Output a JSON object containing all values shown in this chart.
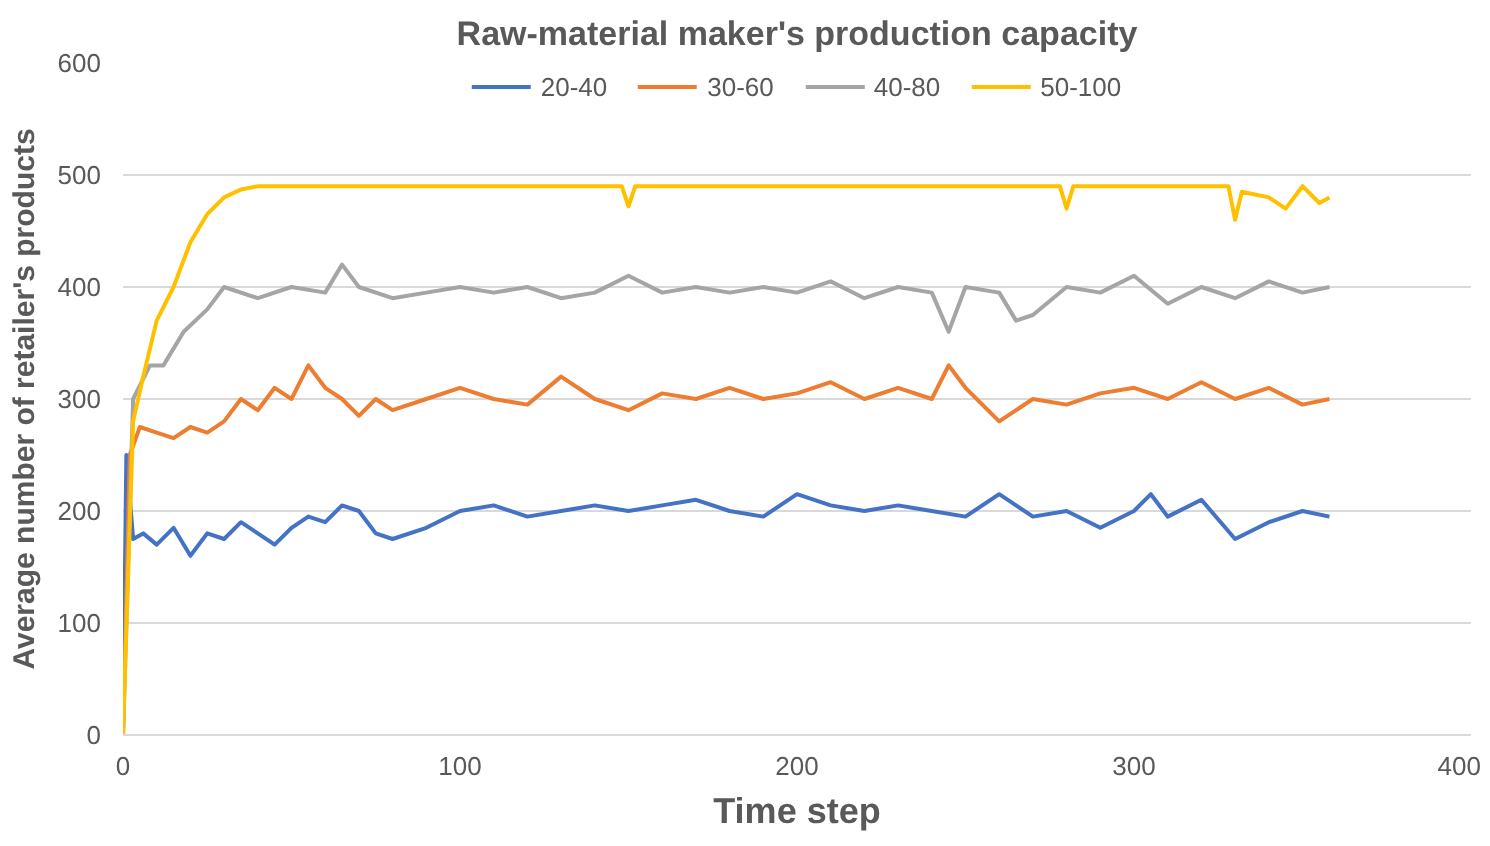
{
  "chart_data": {
    "type": "line",
    "title": "Raw-material maker's production capacity",
    "xlabel": "Time step",
    "ylabel": "Average number of retailer's products",
    "xlim": [
      0,
      400
    ],
    "xticks": [
      0,
      100,
      200,
      300,
      400
    ],
    "ylim": [
      0,
      600
    ],
    "yticks": [
      0,
      100,
      200,
      300,
      400,
      500,
      600
    ],
    "grid": "y",
    "legend": "top",
    "line_style": "solid",
    "marker": "none",
    "series": [
      {
        "name": "20-40",
        "color": "#4472c4",
        "x": [
          0,
          1,
          3,
          6,
          10,
          15,
          20,
          25,
          30,
          35,
          40,
          45,
          50,
          55,
          60,
          65,
          70,
          75,
          80,
          90,
          100,
          110,
          120,
          130,
          140,
          150,
          160,
          170,
          180,
          190,
          200,
          210,
          220,
          230,
          240,
          250,
          260,
          265,
          270,
          280,
          290,
          300,
          305,
          310,
          320,
          330,
          340,
          350,
          358
        ],
        "values": [
          0,
          250,
          175,
          180,
          170,
          185,
          160,
          180,
          175,
          190,
          180,
          170,
          185,
          195,
          190,
          205,
          200,
          180,
          175,
          185,
          200,
          205,
          195,
          200,
          205,
          200,
          205,
          210,
          200,
          195,
          215,
          205,
          200,
          205,
          200,
          195,
          215,
          205,
          195,
          200,
          185,
          200,
          215,
          195,
          210,
          175,
          190,
          200,
          195
        ]
      },
      {
        "name": "30-60",
        "color": "#ed7d31",
        "x": [
          0,
          2,
          5,
          10,
          15,
          20,
          25,
          30,
          35,
          40,
          45,
          50,
          55,
          60,
          65,
          70,
          75,
          80,
          90,
          100,
          110,
          120,
          130,
          140,
          150,
          160,
          170,
          180,
          190,
          200,
          210,
          220,
          230,
          240,
          245,
          250,
          260,
          270,
          280,
          290,
          300,
          310,
          320,
          330,
          340,
          350,
          358
        ],
        "values": [
          0,
          250,
          275,
          270,
          265,
          275,
          270,
          280,
          300,
          290,
          310,
          300,
          330,
          310,
          300,
          285,
          300,
          290,
          300,
          310,
          300,
          295,
          320,
          300,
          290,
          305,
          300,
          310,
          300,
          305,
          315,
          300,
          310,
          300,
          330,
          310,
          280,
          300,
          295,
          305,
          310,
          300,
          315,
          300,
          310,
          295,
          300
        ]
      },
      {
        "name": "40-80",
        "color": "#a5a5a5",
        "x": [
          0,
          3,
          8,
          12,
          18,
          25,
          30,
          40,
          50,
          60,
          65,
          70,
          80,
          90,
          100,
          110,
          120,
          130,
          140,
          150,
          160,
          170,
          180,
          190,
          200,
          210,
          220,
          230,
          240,
          245,
          250,
          260,
          265,
          270,
          280,
          290,
          300,
          310,
          320,
          330,
          340,
          350,
          358
        ],
        "values": [
          0,
          300,
          330,
          330,
          360,
          380,
          400,
          390,
          400,
          395,
          420,
          400,
          390,
          395,
          400,
          395,
          400,
          390,
          395,
          410,
          395,
          400,
          395,
          400,
          395,
          405,
          390,
          400,
          395,
          360,
          400,
          395,
          370,
          375,
          400,
          395,
          410,
          385,
          400,
          390,
          405,
          395,
          400
        ]
      },
      {
        "name": "50-100",
        "color": "#ffc000",
        "x": [
          0,
          3,
          6,
          10,
          15,
          20,
          25,
          30,
          35,
          40,
          60,
          80,
          100,
          120,
          140,
          148,
          150,
          152,
          160,
          180,
          200,
          220,
          240,
          260,
          278,
          280,
          282,
          300,
          320,
          328,
          330,
          332,
          340,
          345,
          350,
          355,
          358
        ],
        "values": [
          0,
          280,
          320,
          370,
          400,
          440,
          465,
          480,
          487,
          490,
          490,
          490,
          490,
          490,
          490,
          490,
          472,
          490,
          490,
          490,
          490,
          490,
          490,
          490,
          490,
          470,
          490,
          490,
          490,
          490,
          460,
          485,
          480,
          470,
          490,
          475,
          480
        ]
      }
    ]
  }
}
